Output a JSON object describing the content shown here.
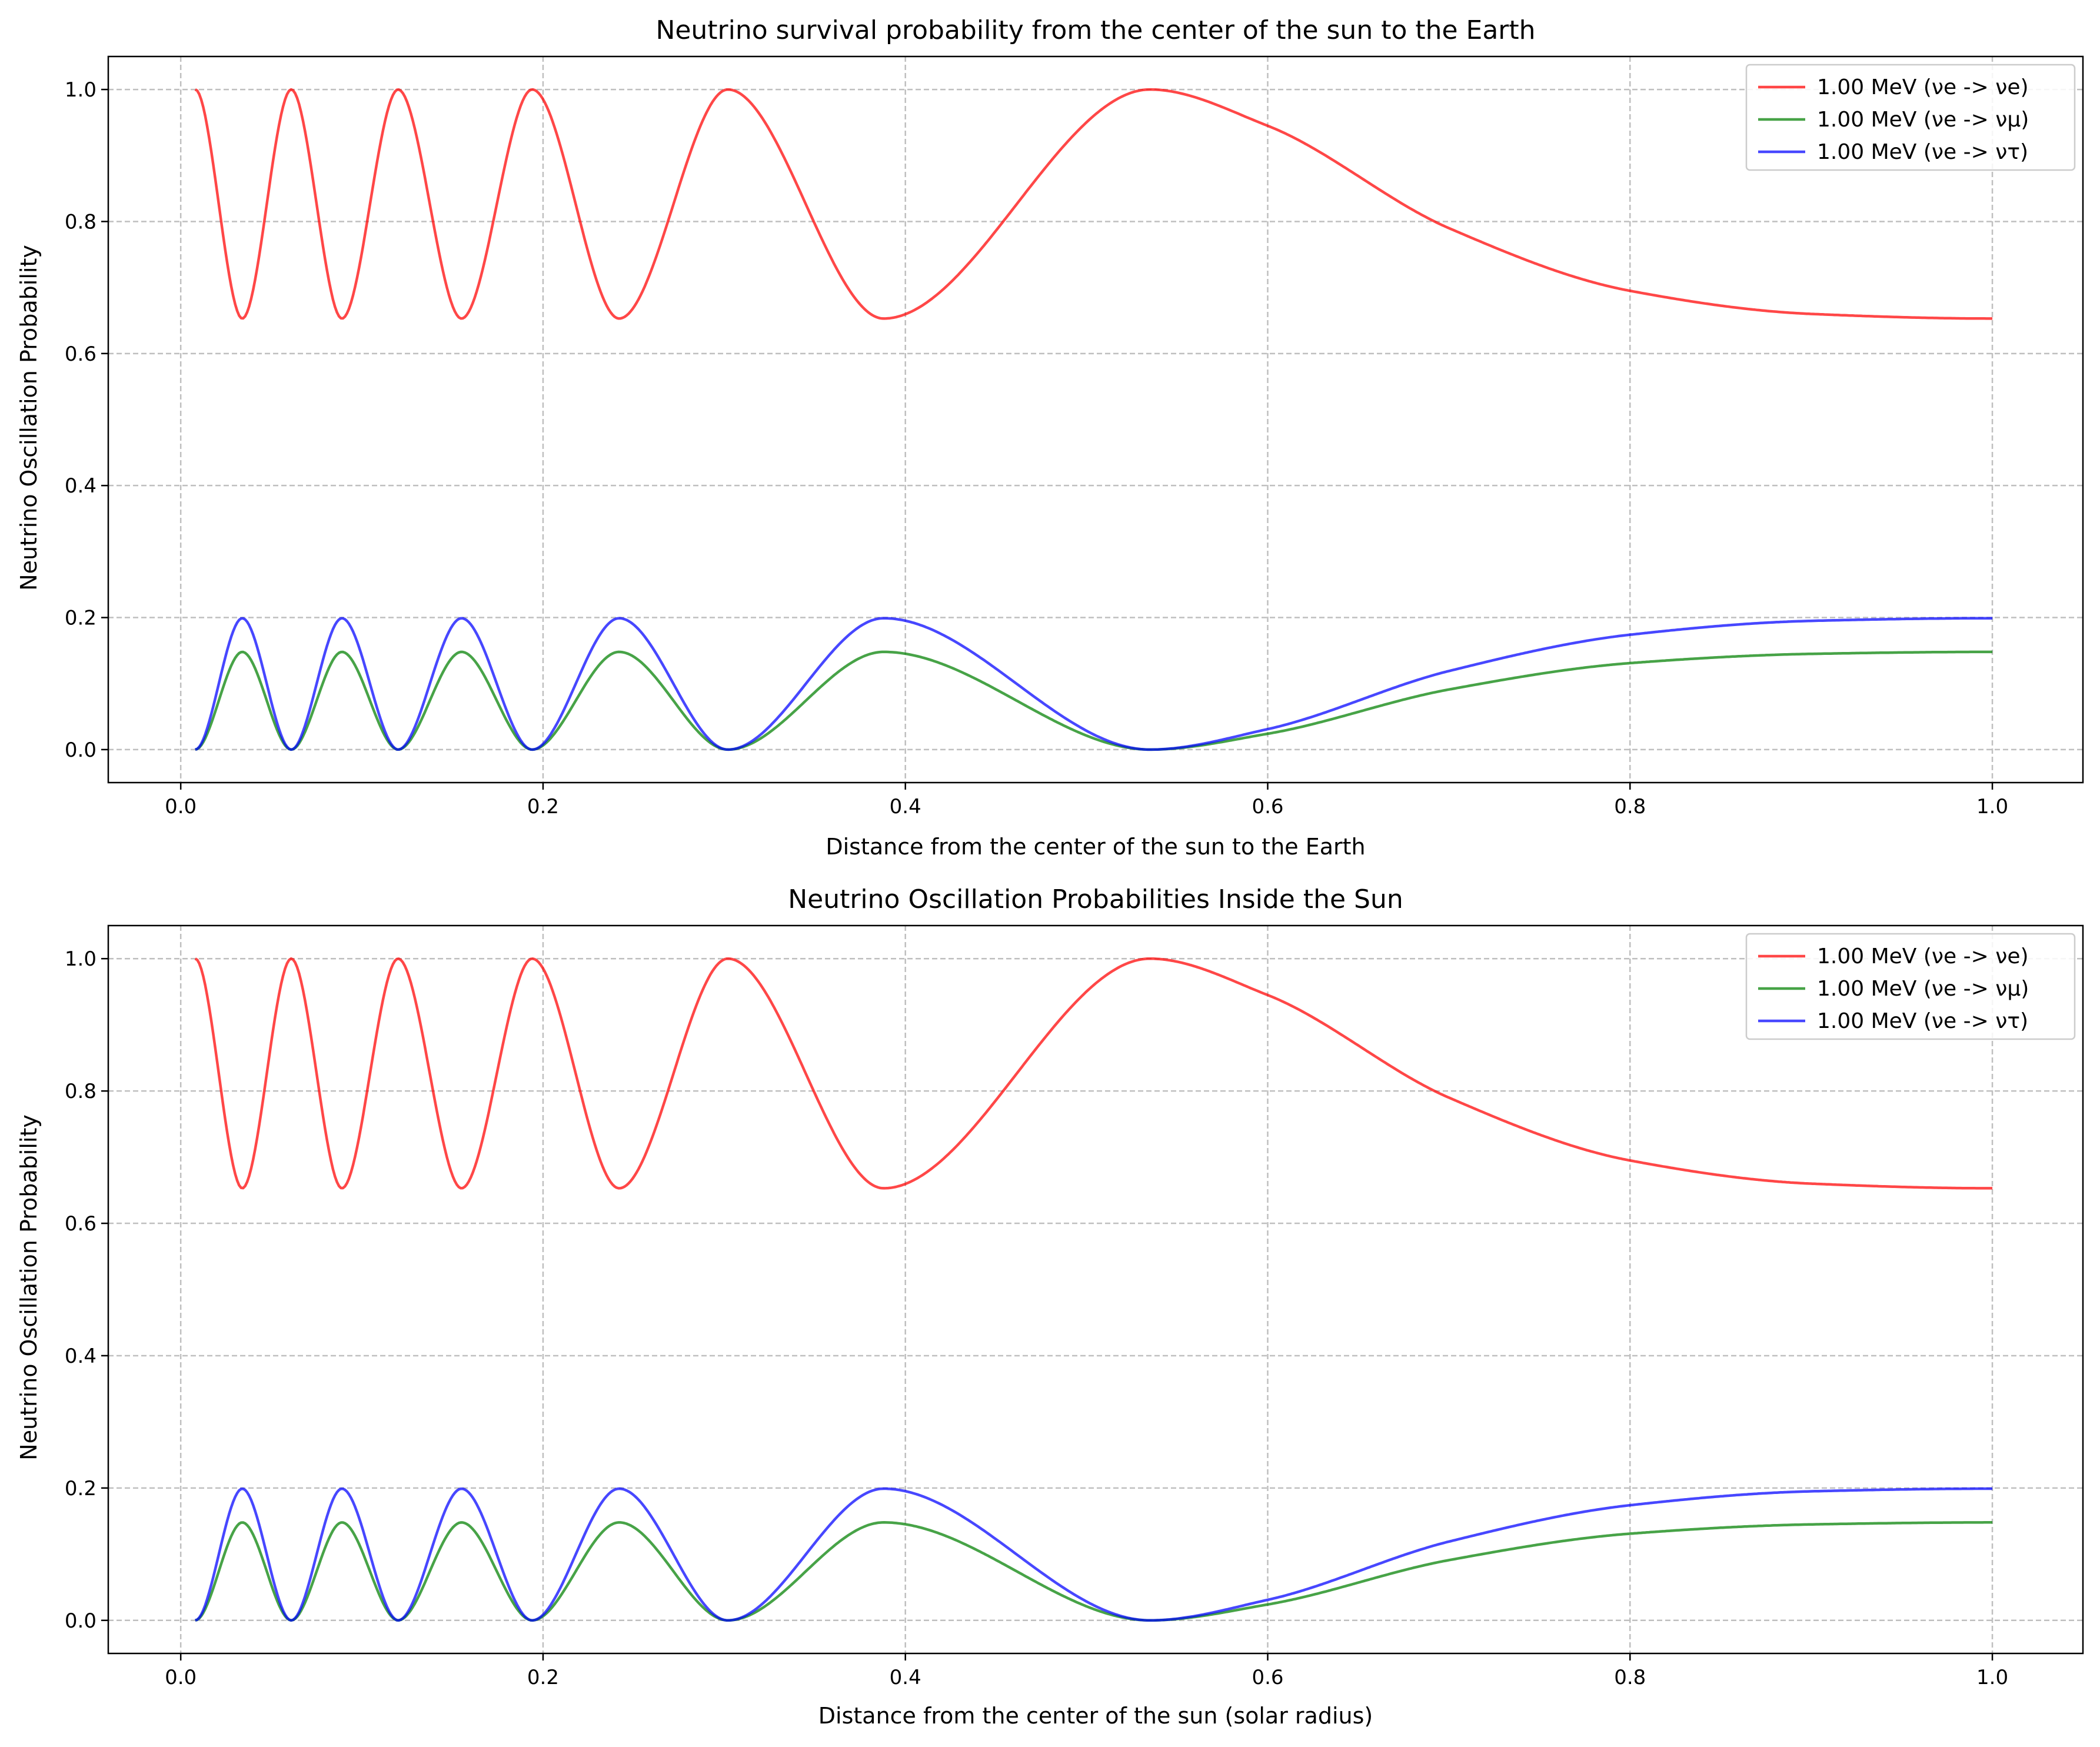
{
  "chart_data": [
    {
      "type": "line",
      "title": "Neutrino survival probability from the center of the sun to the Earth",
      "xlabel": "Distance from the center of the sun to the Earth",
      "ylabel": "Neutrino Oscillation Probability",
      "xlim": [
        -0.04,
        1.05
      ],
      "ylim": [
        -0.05,
        1.05
      ],
      "xticks": [
        "0.0",
        "0.2",
        "0.4",
        "0.6",
        "0.8",
        "1.0"
      ],
      "yticks": [
        "0.0",
        "0.2",
        "0.4",
        "0.6",
        "0.8",
        "1.0"
      ],
      "grid": true,
      "legend_position": "top-right",
      "series": [
        {
          "name": "1.00 MeV (νe -> νe)",
          "color": "#ff0000",
          "x": [
            0.008,
            0.034,
            0.061,
            0.089,
            0.12,
            0.155,
            0.194,
            0.242,
            0.302,
            0.388,
            0.535,
            0.6,
            0.7,
            0.8,
            0.9,
            1.0
          ],
          "y": [
            1.0,
            0.653,
            1.0,
            0.653,
            1.0,
            0.653,
            1.0,
            0.653,
            1.0,
            0.653,
            1.0,
            0.945,
            0.79,
            0.695,
            0.66,
            0.653
          ]
        },
        {
          "name": "1.00 MeV (νe -> νμ)",
          "color": "#008000",
          "x": [
            0.008,
            0.034,
            0.061,
            0.089,
            0.12,
            0.155,
            0.194,
            0.242,
            0.302,
            0.388,
            0.535,
            0.6,
            0.7,
            0.8,
            0.9,
            1.0
          ],
          "y": [
            0.0,
            0.148,
            0.0,
            0.148,
            0.0,
            0.148,
            0.0,
            0.148,
            0.0,
            0.148,
            0.0,
            0.024,
            0.091,
            0.131,
            0.145,
            0.148
          ]
        },
        {
          "name": "1.00 MeV (νe -> ντ)",
          "color": "#0000ff",
          "x": [
            0.008,
            0.034,
            0.061,
            0.089,
            0.12,
            0.155,
            0.194,
            0.242,
            0.302,
            0.388,
            0.535,
            0.6,
            0.7,
            0.8,
            0.9,
            1.0
          ],
          "y": [
            0.0,
            0.199,
            0.0,
            0.199,
            0.0,
            0.199,
            0.0,
            0.199,
            0.0,
            0.199,
            0.0,
            0.031,
            0.119,
            0.174,
            0.195,
            0.199
          ]
        }
      ]
    },
    {
      "type": "line",
      "title": "Neutrino Oscillation Probabilities Inside the Sun",
      "xlabel": "Distance from the center of the sun (solar radius)",
      "ylabel": "Neutrino Oscillation Probability",
      "xlim": [
        -0.04,
        1.05
      ],
      "ylim": [
        -0.05,
        1.05
      ],
      "xticks": [
        "0.0",
        "0.2",
        "0.4",
        "0.6",
        "0.8",
        "1.0"
      ],
      "yticks": [
        "0.0",
        "0.2",
        "0.4",
        "0.6",
        "0.8",
        "1.0"
      ],
      "grid": true,
      "legend_position": "top-right",
      "series": [
        {
          "name": "1.00 MeV (νe -> νe)",
          "color": "#ff0000",
          "x": [
            0.008,
            0.034,
            0.061,
            0.089,
            0.12,
            0.155,
            0.194,
            0.242,
            0.302,
            0.388,
            0.535,
            0.6,
            0.7,
            0.8,
            0.9,
            1.0
          ],
          "y": [
            1.0,
            0.653,
            1.0,
            0.653,
            1.0,
            0.653,
            1.0,
            0.653,
            1.0,
            0.653,
            1.0,
            0.945,
            0.79,
            0.695,
            0.66,
            0.653
          ]
        },
        {
          "name": "1.00 MeV (νe -> νμ)",
          "color": "#008000",
          "x": [
            0.008,
            0.034,
            0.061,
            0.089,
            0.12,
            0.155,
            0.194,
            0.242,
            0.302,
            0.388,
            0.535,
            0.6,
            0.7,
            0.8,
            0.9,
            1.0
          ],
          "y": [
            0.0,
            0.148,
            0.0,
            0.148,
            0.0,
            0.148,
            0.0,
            0.148,
            0.0,
            0.148,
            0.0,
            0.024,
            0.091,
            0.131,
            0.145,
            0.148
          ]
        },
        {
          "name": "1.00 MeV (νe -> ντ)",
          "color": "#0000ff",
          "x": [
            0.008,
            0.034,
            0.061,
            0.089,
            0.12,
            0.155,
            0.194,
            0.242,
            0.302,
            0.388,
            0.535,
            0.6,
            0.7,
            0.8,
            0.9,
            1.0
          ],
          "y": [
            0.0,
            0.199,
            0.0,
            0.199,
            0.0,
            0.199,
            0.0,
            0.199,
            0.0,
            0.199,
            0.0,
            0.031,
            0.119,
            0.174,
            0.195,
            0.199
          ]
        }
      ]
    }
  ]
}
